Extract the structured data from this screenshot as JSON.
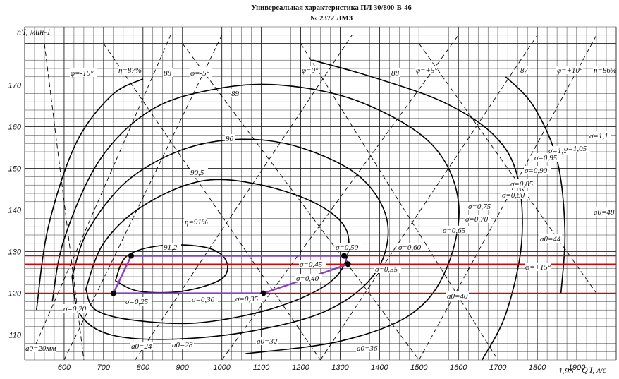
{
  "chart_data": {
    "type": "line",
    "title": "Универсальная характеристика ПЛ 30/800-В-46",
    "subtitle": "№ 2372 ЛМЗ",
    "ylabel": "n'I, мин-1",
    "xlabel": "Q'I, л/с",
    "x_ticks": [
      "600",
      "700",
      "800",
      "900",
      "1000",
      "1100",
      "1200",
      "1300",
      "1400",
      "1500",
      "1600",
      "1700",
      "1800",
      "1900"
    ],
    "y_ticks": [
      "110",
      "120",
      "130",
      "140",
      "150",
      "160",
      "170"
    ],
    "xlim": [
      500,
      2000
    ],
    "ylim": [
      104,
      184
    ],
    "grid": true,
    "efficiency_labels": [
      "η=87%",
      "88",
      "89",
      "90",
      "90,5",
      "η=91%",
      "91,2",
      "88",
      "87",
      "η=86%"
    ],
    "blade_angle_labels": [
      "φ=-10°",
      "φ=-5°",
      "φ=0°",
      "φ=+5°",
      "φ=+10°",
      "φ=+15°"
    ],
    "cavitation_labels": [
      "σ=0,20",
      "σ=0,25",
      "σ=0,30",
      "σ=0,35",
      "σ=0,40",
      "σ=0,45",
      "σ=0,50",
      "σ=0,55",
      "σ=0,60",
      "σ=0,65",
      "σ=0,70",
      "σ=0,75",
      "σ=0,80",
      "σ=0,85",
      "σ=0,90",
      "σ=0,95",
      "σ=1,0",
      "σ=1,05",
      "σ=1,1"
    ],
    "opening_labels": [
      "a0=20мм",
      "a0=24",
      "a0=28",
      "a0=32",
      "a0=36",
      "a0=40",
      "a0=44",
      "a0=48"
    ],
    "corner_mark": "1,95",
    "efficiency_contours": [
      {
        "label": "91,2",
        "points": [
          [
            730,
            123
          ],
          [
            760,
            129
          ],
          [
            850,
            131.5
          ],
          [
            960,
            131
          ],
          [
            1010,
            128
          ],
          [
            1000,
            123.5
          ],
          [
            900,
            120.5
          ],
          [
            790,
            120.5
          ],
          [
            730,
            123
          ]
        ]
      },
      {
        "label": "90,5",
        "points": [
          [
            655,
            121
          ],
          [
            700,
            132
          ],
          [
            800,
            141
          ],
          [
            950,
            147
          ],
          [
            1100,
            146
          ],
          [
            1250,
            141
          ],
          [
            1320,
            134
          ],
          [
            1290,
            124
          ],
          [
            1150,
            117
          ],
          [
            950,
            113
          ],
          [
            780,
            113.5
          ],
          [
            680,
            116
          ],
          [
            655,
            121
          ]
        ]
      },
      {
        "label": "90",
        "points": [
          [
            620,
            124
          ],
          [
            660,
            135
          ],
          [
            760,
            147
          ],
          [
            900,
            154.5
          ],
          [
            1050,
            157
          ],
          [
            1200,
            155
          ],
          [
            1350,
            148
          ],
          [
            1420,
            137
          ],
          [
            1390,
            125
          ],
          [
            1270,
            116
          ],
          [
            1080,
            111
          ],
          [
            880,
            109
          ],
          [
            720,
            110
          ],
          [
            640,
            115
          ],
          [
            620,
            124
          ]
        ]
      },
      {
        "label": "89",
        "points": [
          [
            570,
            118
          ],
          [
            600,
            133
          ],
          [
            690,
            152
          ],
          [
            820,
            164
          ],
          [
            980,
            169
          ],
          [
            1150,
            170
          ],
          [
            1350,
            166
          ],
          [
            1530,
            156
          ],
          [
            1600,
            142
          ],
          [
            1570,
            126
          ],
          [
            1480,
            115
          ],
          [
            1300,
            108.5
          ],
          [
            1060,
            105.5
          ]
        ]
      },
      {
        "label": "88",
        "points": [
          [
            530,
            116
          ],
          [
            560,
            136
          ],
          [
            630,
            156
          ],
          [
            720,
            167.5
          ],
          [
            800,
            171.5
          ]
        ]
      },
      {
        "label": "88 right",
        "points": [
          [
            1230,
            176
          ],
          [
            1380,
            172
          ],
          [
            1560,
            166
          ],
          [
            1690,
            158
          ],
          [
            1750,
            148
          ],
          [
            1760,
            132
          ],
          [
            1720,
            115
          ],
          [
            1660,
            104
          ]
        ]
      },
      {
        "label": "87",
        "points": [
          [
            1720,
            172
          ],
          [
            1790,
            165
          ],
          [
            1850,
            152
          ],
          [
            1870,
            135
          ],
          [
            1860,
            120
          ]
        ]
      }
    ],
    "operating_lines": [
      {
        "n": 129,
        "color": "#e00000"
      },
      {
        "n": 127,
        "color": "#e00000"
      },
      {
        "n": 120,
        "color": "#e00000"
      }
    ],
    "operating_zone": {
      "color": "#8a3fc7",
      "points": [
        [
          725,
          120
        ],
        [
          770,
          129
        ],
        [
          1310,
          129
        ],
        [
          1320,
          127
        ],
        [
          1245,
          124.5
        ],
        [
          1105,
          120
        ],
        [
          725,
          120
        ]
      ],
      "markers": [
        [
          725,
          120
        ],
        [
          770,
          129
        ],
        [
          1310,
          129
        ],
        [
          1320,
          127
        ],
        [
          1105,
          120
        ]
      ]
    }
  }
}
